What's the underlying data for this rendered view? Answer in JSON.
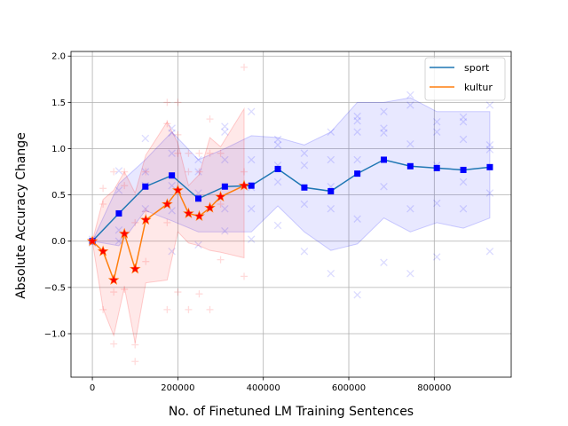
{
  "chart_data": {
    "type": "line",
    "title": "",
    "xlabel": "No. of Finetuned LM Training Sentences",
    "ylabel": "Absolute Accuracy Change",
    "xlim": [
      -50000,
      980000
    ],
    "ylim": [
      -1.47,
      2.05
    ],
    "xticks": [
      0,
      200000,
      400000,
      600000,
      800000
    ],
    "xtick_labels": [
      "0",
      "200000",
      "400000",
      "600000",
      "800000"
    ],
    "yticks": [
      -1.0,
      -0.5,
      0.0,
      0.5,
      1.0,
      1.5,
      2.0
    ],
    "ytick_labels": [
      "−1.0",
      "−0.5",
      "0.0",
      "0.5",
      "1.0",
      "1.5",
      "2.0"
    ],
    "grid": true,
    "legend_position": "top-right",
    "series": [
      {
        "name": "sport",
        "color": "#1f77b4",
        "marker": "square",
        "marker_color": "#0000ff",
        "band_color": "#0000ff",
        "x": [
          0,
          62000,
          124000,
          186000,
          248000,
          310000,
          372000,
          434000,
          496000,
          558000,
          620000,
          682000,
          744000,
          806000,
          868000,
          930000
        ],
        "y": [
          0.0,
          0.3,
          0.59,
          0.71,
          0.46,
          0.59,
          0.6,
          0.78,
          0.58,
          0.54,
          0.73,
          0.88,
          0.81,
          0.79,
          0.77,
          0.8
        ],
        "band_upper": [
          0.0,
          0.62,
          0.88,
          1.18,
          0.88,
          1.0,
          1.14,
          1.12,
          1.04,
          1.18,
          1.5,
          1.5,
          1.55,
          1.4,
          1.4,
          1.4
        ],
        "band_lower": [
          0.0,
          -0.05,
          0.33,
          0.22,
          0.1,
          0.1,
          0.1,
          0.38,
          0.1,
          -0.1,
          -0.03,
          0.25,
          0.1,
          0.2,
          0.14,
          0.25
        ],
        "scatter_x": [
          0,
          0,
          0,
          62000,
          62000,
          62000,
          62000,
          124000,
          124000,
          124000,
          124000,
          124000,
          186000,
          186000,
          186000,
          186000,
          186000,
          186000,
          248000,
          248000,
          248000,
          248000,
          310000,
          310000,
          310000,
          310000,
          310000,
          372000,
          372000,
          372000,
          372000,
          372000,
          434000,
          434000,
          434000,
          434000,
          434000,
          496000,
          496000,
          496000,
          496000,
          558000,
          558000,
          558000,
          558000,
          558000,
          620000,
          620000,
          620000,
          620000,
          620000,
          620000,
          682000,
          682000,
          682000,
          682000,
          682000,
          744000,
          744000,
          744000,
          744000,
          744000,
          806000,
          806000,
          806000,
          806000,
          806000,
          868000,
          868000,
          868000,
          868000,
          868000,
          930000,
          930000,
          930000,
          930000,
          930000
        ],
        "scatter_y": [
          0.0,
          0.02,
          -0.02,
          0.76,
          0.55,
          0.12,
          0.0,
          1.11,
          0.75,
          0.6,
          0.35,
          0.22,
          1.22,
          1.17,
          0.95,
          0.6,
          0.33,
          -0.11,
          0.88,
          0.75,
          0.52,
          -0.04,
          1.24,
          1.18,
          0.88,
          0.35,
          0.11,
          1.4,
          0.88,
          0.58,
          0.35,
          0.02,
          1.1,
          1.04,
          0.82,
          0.64,
          0.17,
          0.95,
          0.82,
          0.4,
          -0.11,
          1.18,
          0.88,
          0.59,
          0.35,
          -0.35,
          1.35,
          1.3,
          1.18,
          0.88,
          0.24,
          -0.58,
          1.4,
          1.22,
          1.17,
          0.59,
          -0.23,
          1.58,
          1.47,
          1.05,
          0.35,
          -0.35,
          1.29,
          1.18,
          0.82,
          0.41,
          -0.17,
          1.34,
          1.29,
          1.1,
          0.64,
          0.35,
          1.47,
          1.04,
          0.99,
          0.52,
          -0.11
        ]
      },
      {
        "name": "kultur",
        "color": "#ff7f0e",
        "marker": "star",
        "marker_color": "#ff0000",
        "band_color": "#ff0000",
        "x": [
          0,
          25000,
          50000,
          75000,
          100000,
          125000,
          175000,
          200000,
          225000,
          250000,
          275000,
          300000,
          355000
        ],
        "y": [
          0.0,
          -0.11,
          -0.42,
          0.08,
          -0.3,
          0.23,
          0.4,
          0.55,
          0.3,
          0.27,
          0.36,
          0.48,
          0.6
        ],
        "band_upper": [
          0.0,
          0.45,
          0.55,
          0.75,
          0.52,
          0.93,
          1.29,
          1.06,
          0.6,
          0.72,
          1.12,
          1.02,
          1.43
        ],
        "band_lower": [
          0.0,
          -0.73,
          -1.02,
          -0.5,
          -1.1,
          -0.45,
          -0.42,
          0.1,
          -0.02,
          -0.05,
          -0.1,
          -0.12,
          -0.18
        ],
        "scatter_x": [
          0,
          25000,
          25000,
          25000,
          50000,
          50000,
          50000,
          75000,
          75000,
          75000,
          100000,
          100000,
          100000,
          125000,
          125000,
          125000,
          175000,
          175000,
          175000,
          175000,
          200000,
          200000,
          200000,
          200000,
          225000,
          225000,
          225000,
          250000,
          250000,
          250000,
          275000,
          275000,
          275000,
          300000,
          300000,
          300000,
          355000,
          355000,
          355000
        ],
        "scatter_y": [
          0.0,
          0.57,
          0.4,
          -0.74,
          0.75,
          -0.55,
          -1.11,
          0.75,
          0.6,
          -0.52,
          0.2,
          -1.12,
          -1.3,
          0.75,
          0.32,
          -0.22,
          1.5,
          1.27,
          0.2,
          -0.74,
          1.5,
          1.15,
          0.95,
          -0.55,
          0.95,
          0.75,
          -0.74,
          0.95,
          0.75,
          -0.57,
          1.32,
          0.95,
          -0.74,
          0.95,
          0.4,
          -0.2,
          1.88,
          0.75,
          -0.38
        ]
      }
    ]
  }
}
